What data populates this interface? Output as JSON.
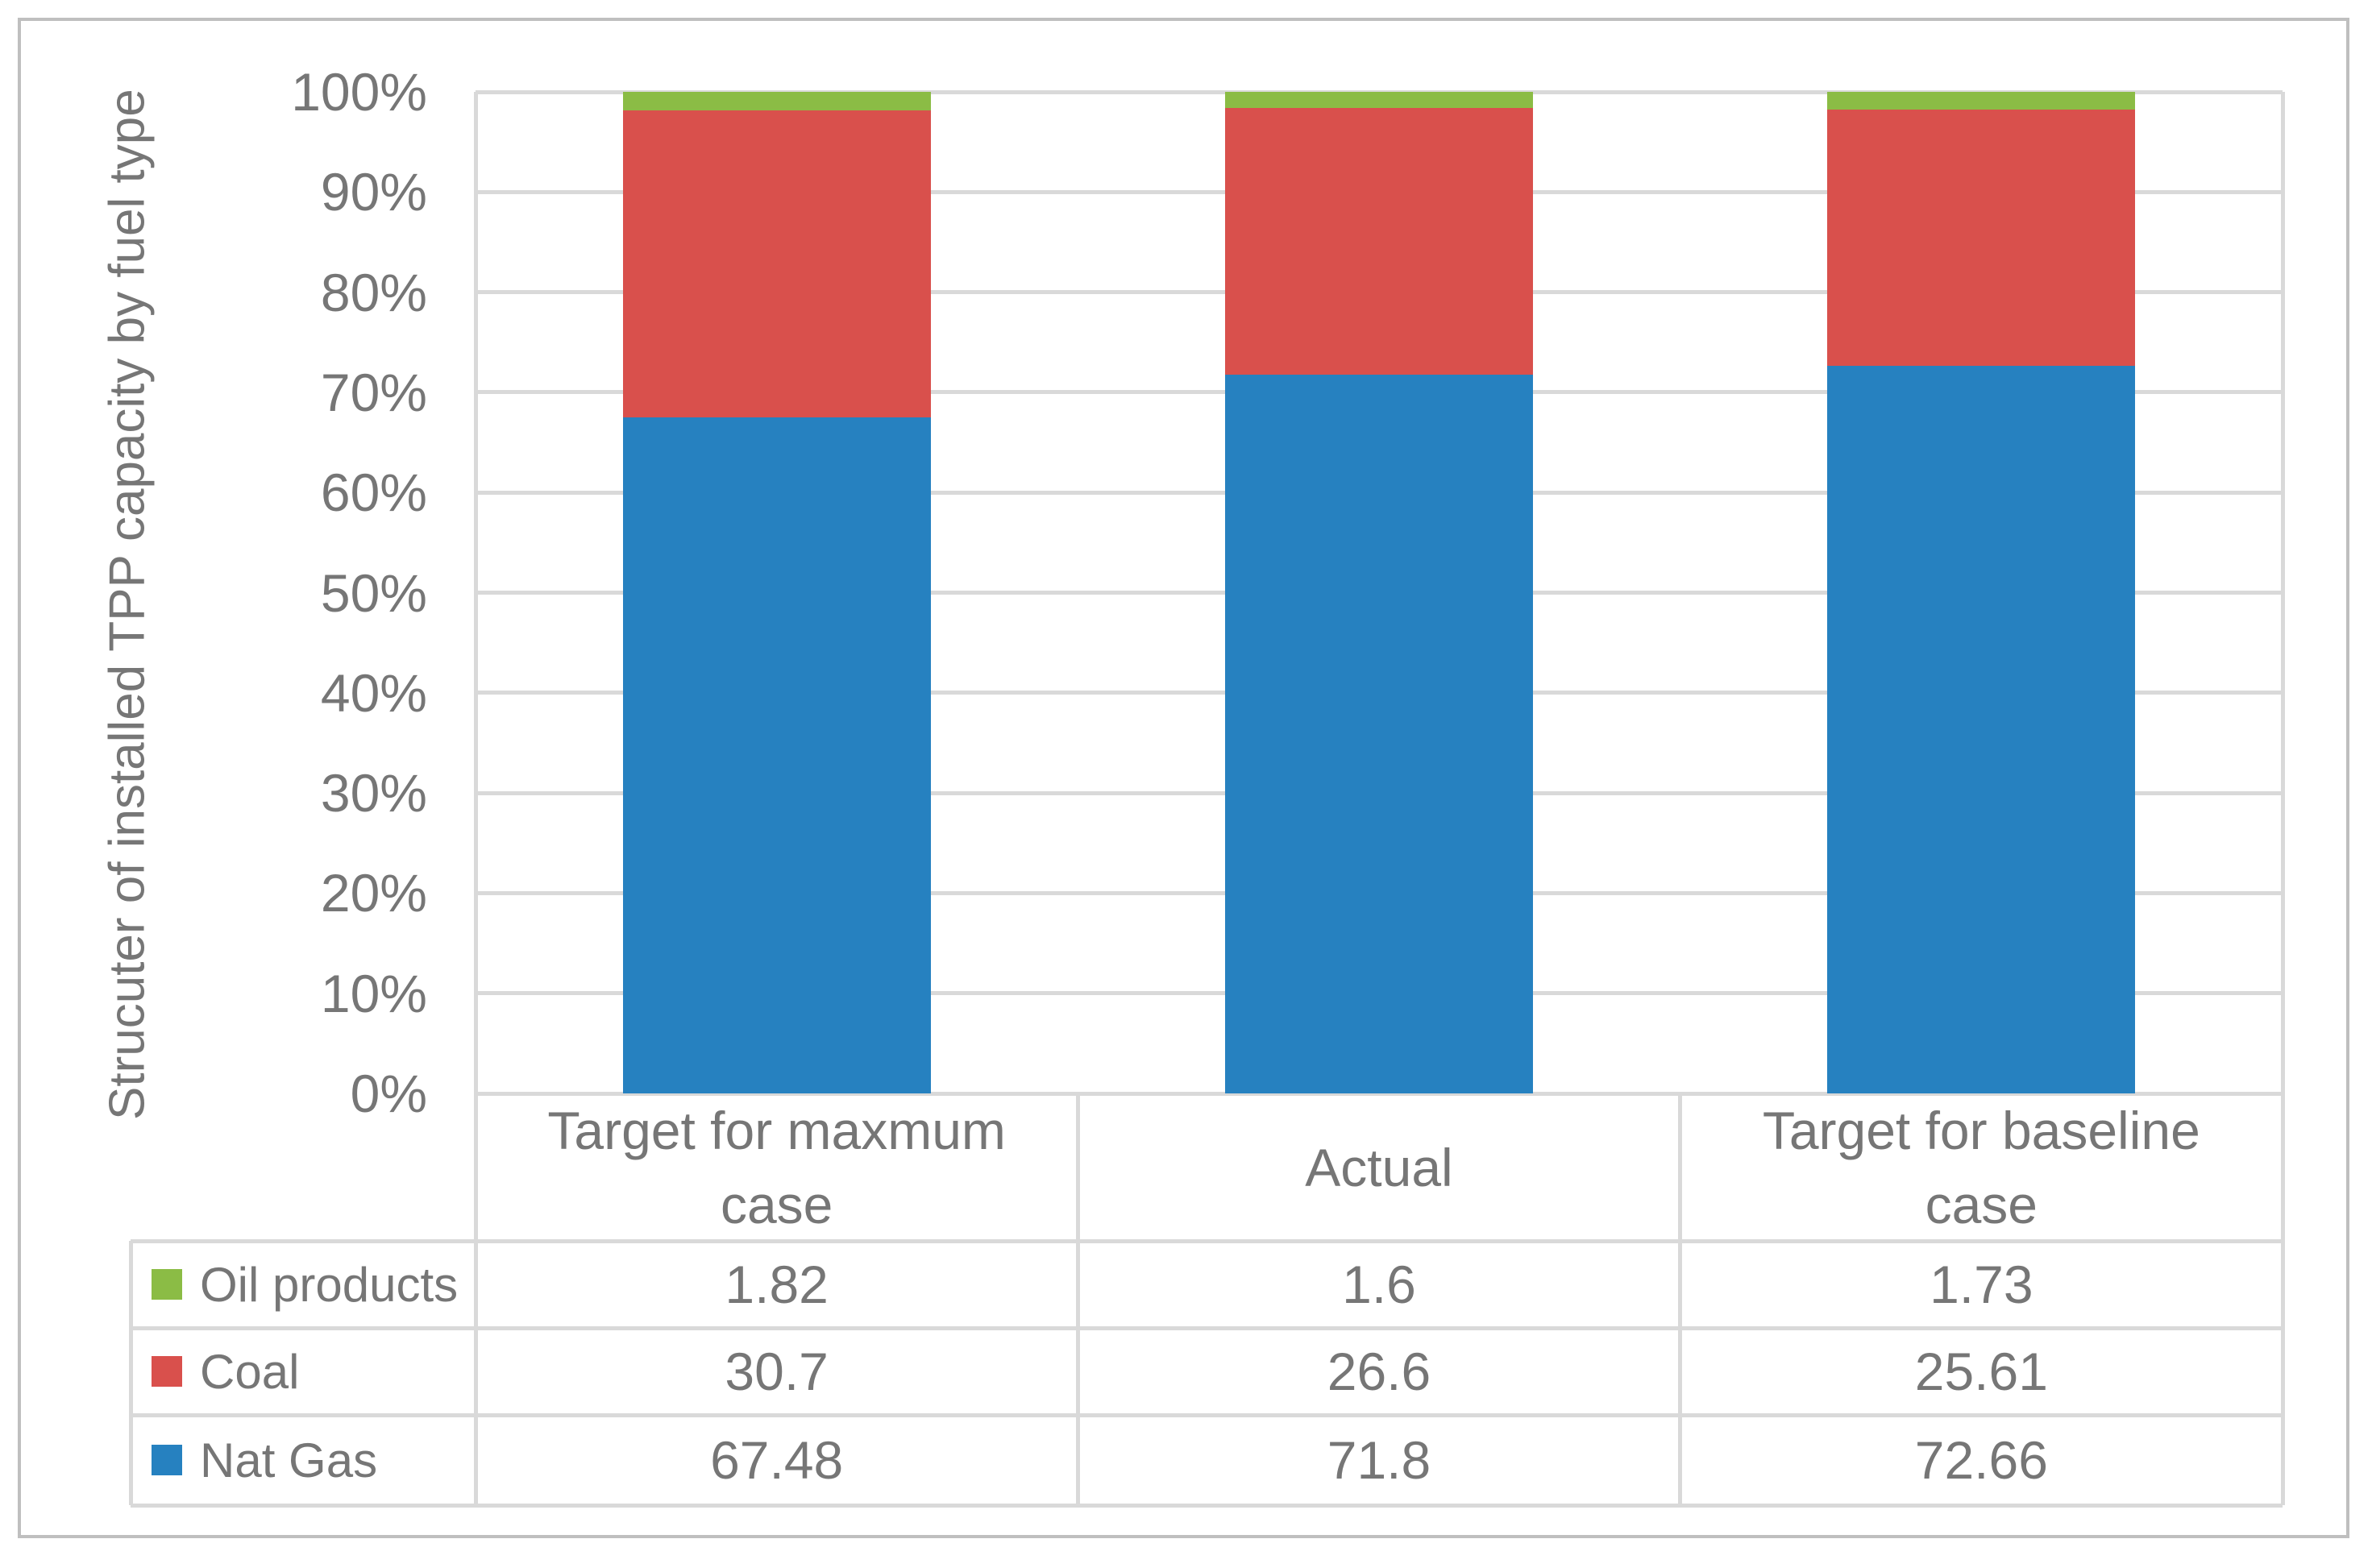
{
  "y_axis": {
    "title": "Strucuter of installed TPP capacity by fuel type",
    "ticks": [
      "0%",
      "10%",
      "20%",
      "30%",
      "40%",
      "50%",
      "60%",
      "70%",
      "80%",
      "90%",
      "100%"
    ]
  },
  "chart_data": {
    "type": "bar",
    "stacked": true,
    "categories": [
      "Target for maxmum case",
      "Actual",
      "Target for baseline case"
    ],
    "series": [
      {
        "name": "Nat Gas",
        "color": "#2681C0",
        "values": [
          67.48,
          71.8,
          72.66
        ]
      },
      {
        "name": "Coal",
        "color": "#D9504C",
        "values": [
          30.7,
          26.6,
          25.61
        ]
      },
      {
        "name": "Oil products",
        "color": "#8BBC45",
        "values": [
          1.82,
          1.6,
          1.73
        ]
      }
    ],
    "title": "",
    "xlabel": "",
    "ylabel": "Strucuter of installed TPP capacity by fuel type",
    "ylim": [
      0,
      100
    ],
    "grid": true,
    "legend_position": "data-table-left"
  },
  "data_table": {
    "header": [
      "Target for maxmum case",
      "Actual",
      "Target for baseline case"
    ],
    "rows": [
      {
        "label": "Oil products",
        "swatch_color": "#8BBC45",
        "values": [
          "1.82",
          "1.6",
          "1.73"
        ]
      },
      {
        "label": "Coal",
        "swatch_color": "#D9504C",
        "values": [
          "30.7",
          "26.6",
          "25.61"
        ]
      },
      {
        "label": "Nat Gas",
        "swatch_color": "#2681C0",
        "values": [
          "67.48",
          "71.8",
          "72.66"
        ]
      }
    ]
  },
  "colors": {
    "grid": "#D9D9D9",
    "outer_border": "#BFBFBF",
    "text": "#767676",
    "background": "#FFFFFF"
  }
}
